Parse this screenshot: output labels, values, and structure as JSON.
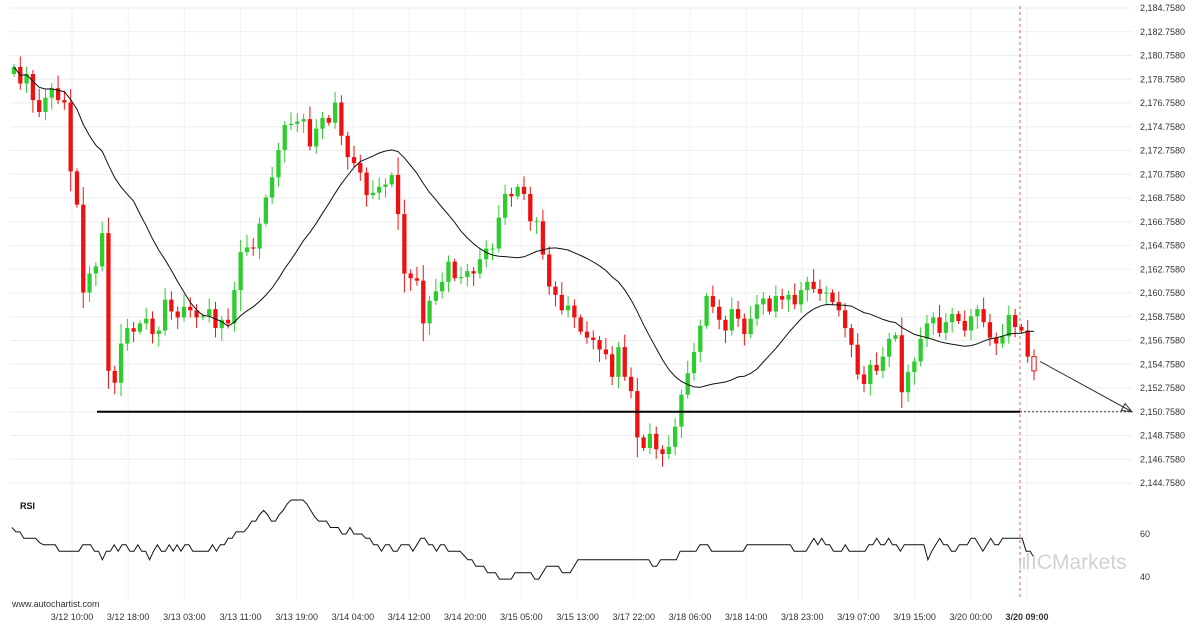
{
  "chart_data": {
    "type": "candlestick",
    "y_ticks": [
      "2,144.7580",
      "2,146.7580",
      "2,148.7580",
      "2,150.7580",
      "2,152.7580",
      "2,154.7580",
      "2,156.7580",
      "2,158.7580",
      "2,160.7580",
      "2,162.7580",
      "2,164.7580",
      "2,166.7580",
      "2,168.7580",
      "2,170.7580",
      "2,172.7580",
      "2,174.7580",
      "2,176.7580",
      "2,178.7580",
      "2,180.7580",
      "2,182.7580",
      "2,184.7580"
    ],
    "ylim": [
      2144.758,
      2184.758
    ],
    "x_ticks": [
      "3/12 10:00",
      "3/12 18:00",
      "3/13 03:00",
      "3/13 11:00",
      "3/13 19:00",
      "3/14 04:00",
      "3/14 12:00",
      "3/14 20:00",
      "3/15 05:00",
      "3/15 13:00",
      "3/17 22:00",
      "3/18 06:00",
      "3/18 14:00",
      "3/18 23:00",
      "3/19 07:00",
      "3/19 15:00",
      "3/20 00:00",
      "3/20 09:00"
    ],
    "highlight_x_tick": "3/20 09:00",
    "support_level": 2150.758,
    "closes": [
      2179.8,
      2178.4,
      2179.2,
      2177.0,
      2176.0,
      2177.2,
      2178.0,
      2177.0,
      2176.8,
      2171.0,
      2168.2,
      2160.8,
      2162.4,
      2163.0,
      2165.8,
      2154.2,
      2153.2,
      2156.5,
      2157.8,
      2157.5,
      2158.2,
      2158.6,
      2157.3,
      2157.6,
      2160.2,
      2159.2,
      2158.7,
      2159.6,
      2159.3,
      2158.7,
      2158.8,
      2159.4,
      2157.8,
      2158.5,
      2158.2,
      2161.0,
      2164.2,
      2164.6,
      2164.5,
      2166.6,
      2168.8,
      2170.5,
      2172.8,
      2174.9,
      2175.0,
      2175.2,
      2175.4,
      2173.1,
      2174.6,
      2175.5,
      2175.1,
      2176.8,
      2174.0,
      2172.2,
      2171.7,
      2170.9,
      2169.0,
      2169.2,
      2169.7,
      2169.9,
      2170.7,
      2167.4,
      2162.4,
      2162.0,
      2161.8,
      2158.2,
      2160.1,
      2160.9,
      2161.7,
      2163.4,
      2162.0,
      2162.1,
      2162.6,
      2162.4,
      2163.6,
      2164.5,
      2164.5,
      2167.1,
      2169.1,
      2168.9,
      2169.7,
      2169.1,
      2166.8,
      2166.8,
      2164.0,
      2161.3,
      2160.6,
      2159.3,
      2159.7,
      2158.7,
      2157.5,
      2157.0,
      2156.8,
      2156.0,
      2155.6,
      2153.7,
      2156.2,
      2153.7,
      2152.5,
      2148.6,
      2147.7,
      2148.9,
      2147.6,
      2147.2,
      2147.8,
      2149.5,
      2152.2,
      2154.0,
      2155.8,
      2158.0,
      2160.5,
      2159.6,
      2158.5,
      2157.6,
      2159.4,
      2158.6,
      2157.3,
      2158.6,
      2159.8,
      2160.3,
      2159.2,
      2160.5,
      2160.2,
      2160.6,
      2159.8,
      2161.0,
      2161.7,
      2161.1,
      2160.7,
      2160.8,
      2160.0,
      2159.3,
      2157.8,
      2156.4,
      2153.9,
      2153.1,
      2154.7,
      2154.2,
      2155.4,
      2156.9,
      2157.2,
      2152.4,
      2154.1,
      2155.0,
      2156.9,
      2158.2,
      2158.7,
      2157.4,
      2158.3,
      2159.0,
      2158.4,
      2157.6,
      2158.8,
      2159.4,
      2158.3,
      2157.0,
      2156.5,
      2157.1,
      2158.9,
      2157.9,
      2157.6,
      2155.4,
      2154.2
    ]
  },
  "rsi": {
    "label": "RSI",
    "levels": [
      "60",
      "40"
    ],
    "values": [
      63,
      61,
      61,
      58,
      58,
      58,
      58,
      56,
      55,
      55,
      55,
      55,
      52,
      52,
      52,
      52,
      52,
      52,
      55,
      55,
      55,
      52,
      52,
      48,
      52,
      52,
      55,
      52,
      55,
      55,
      52,
      52,
      55,
      52,
      52,
      48,
      52,
      55,
      52,
      52,
      55,
      52,
      55,
      52,
      55,
      55,
      52,
      52,
      52,
      52,
      52,
      55,
      52,
      55,
      55,
      58,
      58,
      61,
      61,
      61,
      63,
      66,
      66,
      69,
      71,
      69,
      66,
      66,
      69,
      71,
      74,
      77,
      80,
      80,
      77,
      74,
      71,
      68,
      66,
      66,
      66,
      63,
      63,
      63,
      60,
      60,
      63,
      60,
      60,
      60,
      58,
      58,
      55,
      55,
      52,
      55,
      55,
      52,
      52,
      55,
      55,
      55,
      52,
      55,
      58,
      58,
      55,
      55,
      52,
      55,
      55,
      52,
      52,
      52,
      52,
      50,
      48,
      48,
      45,
      45,
      45,
      42,
      42,
      42,
      39,
      39,
      39,
      39,
      42,
      42,
      42,
      42,
      42,
      39,
      39,
      42,
      45,
      45,
      45,
      45,
      42,
      42,
      42,
      45,
      48,
      48,
      48,
      48,
      48,
      48,
      48,
      48,
      48,
      48,
      48,
      48,
      48,
      48,
      48,
      48,
      48,
      48,
      48,
      45,
      45,
      48,
      48,
      48,
      48,
      48,
      52,
      52,
      52,
      52,
      52,
      55,
      55,
      55,
      52,
      52,
      52,
      52,
      52,
      52,
      52,
      52,
      52,
      55,
      55,
      55,
      55,
      55,
      55,
      55,
      55,
      55,
      55,
      55,
      55,
      52,
      52,
      52,
      52,
      55,
      58,
      55,
      58,
      55,
      55,
      52,
      52,
      52,
      55,
      52,
      52,
      52,
      52,
      52,
      55,
      55,
      58,
      55,
      55,
      58,
      55,
      55,
      52,
      55,
      55,
      55,
      55,
      55,
      55,
      48,
      52,
      55,
      58,
      55,
      55,
      52,
      52,
      55,
      55,
      55,
      58,
      58,
      55,
      52,
      55,
      58,
      55,
      55,
      58,
      58,
      58,
      58,
      58,
      58,
      52,
      52,
      49
    ]
  },
  "source": "www.autochartist.com",
  "brand": {
    "prefix": "IC",
    "name": "Markets"
  },
  "colors": {
    "up": "#2ecc2e",
    "down": "#ee1111",
    "ma": "#111111",
    "level": "#000000"
  }
}
